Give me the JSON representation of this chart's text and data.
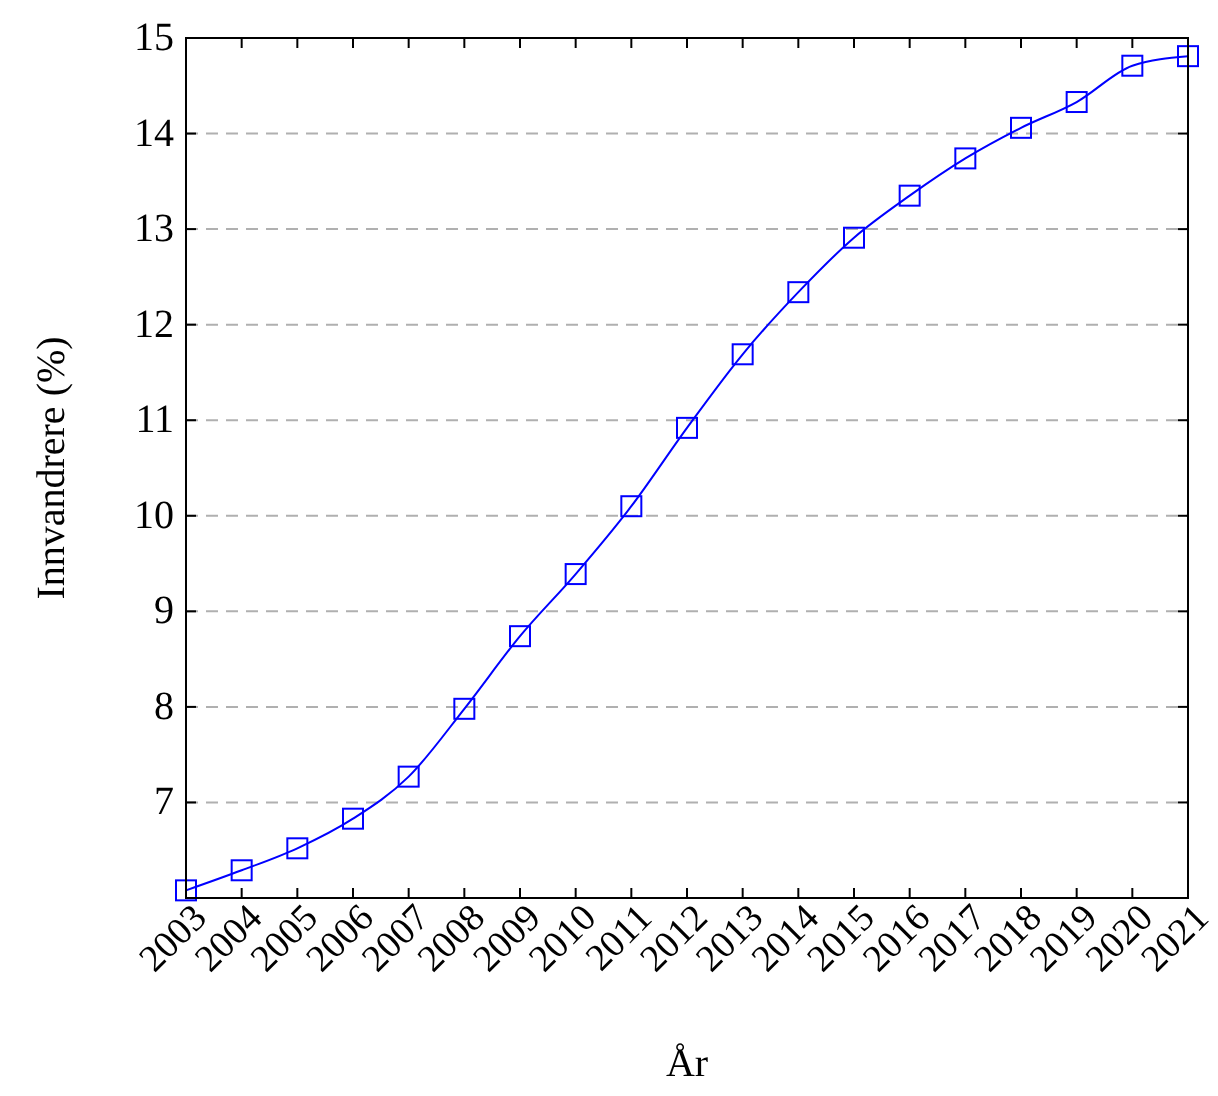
{
  "chart_data": {
    "type": "line",
    "xlabel": "År",
    "ylabel": "Innvandrere (%)",
    "x": [
      2003,
      2004,
      2005,
      2006,
      2007,
      2008,
      2009,
      2010,
      2011,
      2012,
      2013,
      2014,
      2015,
      2016,
      2017,
      2018,
      2019,
      2020,
      2021
    ],
    "series": [
      {
        "color": "#0000ff",
        "values": [
          6.08,
          6.29,
          6.52,
          6.83,
          7.27,
          7.98,
          8.74,
          9.39,
          10.1,
          10.92,
          11.69,
          12.34,
          12.91,
          13.35,
          13.74,
          14.06,
          14.33,
          14.71,
          14.81
        ]
      }
    ],
    "xlim": [
      2003,
      2021
    ],
    "xticks": [
      2003,
      2004,
      2005,
      2006,
      2007,
      2008,
      2009,
      2010,
      2011,
      2012,
      2013,
      2014,
      2015,
      2016,
      2017,
      2018,
      2019,
      2020,
      2021
    ],
    "ylim": [
      6,
      15
    ],
    "yticks": [
      7,
      8,
      9,
      10,
      11,
      12,
      13,
      14,
      15
    ],
    "grid": "y",
    "marker": "square",
    "line_style": "solid"
  }
}
